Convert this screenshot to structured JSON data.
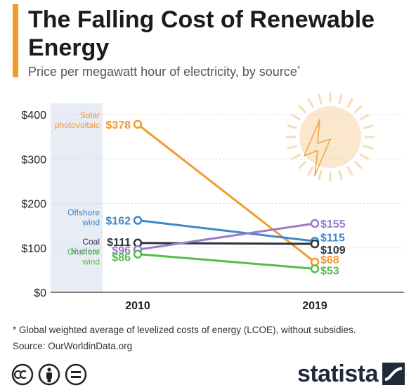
{
  "header": {
    "title": "The Falling Cost of Renewable Energy",
    "subtitle": "Price per megawatt hour of electricity, by source",
    "subtitle_marker": "*"
  },
  "footer": {
    "footnote": "* Global weighted average of levelized costs of energy (LCOE), without subsidies.",
    "source": "Source: OurWorldinData.org",
    "brand": "statista"
  },
  "chart_data": {
    "type": "line",
    "x": [
      "2010",
      "2019"
    ],
    "ylim": [
      0,
      400
    ],
    "yticks": [
      "$0",
      "$100",
      "$200",
      "$300",
      "$400"
    ],
    "ytick_values": [
      0,
      100,
      200,
      300,
      400
    ],
    "grid": true,
    "highlight_band": "2010",
    "series": [
      {
        "name": "Solar photovoltaic",
        "name_lines": [
          "Solar",
          "photovoltaic"
        ],
        "values": [
          378,
          68
        ],
        "labels": [
          "$378",
          "$68"
        ],
        "color": "#f39a2b"
      },
      {
        "name": "Offshore wind",
        "name_lines": [
          "Offshore",
          "wind"
        ],
        "values": [
          162,
          115
        ],
        "labels": [
          "$162",
          "$115"
        ],
        "color": "#3f87c7"
      },
      {
        "name": "Coal",
        "name_lines": [
          "Coal"
        ],
        "values": [
          111,
          109
        ],
        "labels": [
          "$111",
          "$109"
        ],
        "color": "#2b3440"
      },
      {
        "name": "Nuclear",
        "name_lines": [
          "Nuclear"
        ],
        "values": [
          96,
          155
        ],
        "labels": [
          "$96",
          "$155"
        ],
        "color": "#9b7ac7"
      },
      {
        "name": "Onshore wind",
        "name_lines": [
          "Onshore",
          "wind"
        ],
        "values": [
          86,
          53
        ],
        "labels": [
          "$86",
          "$53"
        ],
        "color": "#4fbf48"
      }
    ]
  },
  "colors": {
    "accent": "#f39a2b",
    "band": "#e8ecf4",
    "sun_fill": "#fbe7cc",
    "sun_ray": "#f7dcb8",
    "bolt": "#f3a446"
  },
  "icons": [
    "sun-icon",
    "lightning-bolt-icon",
    "cc-icon",
    "attribution-icon",
    "no-derivatives-icon",
    "statista-logo-icon"
  ]
}
